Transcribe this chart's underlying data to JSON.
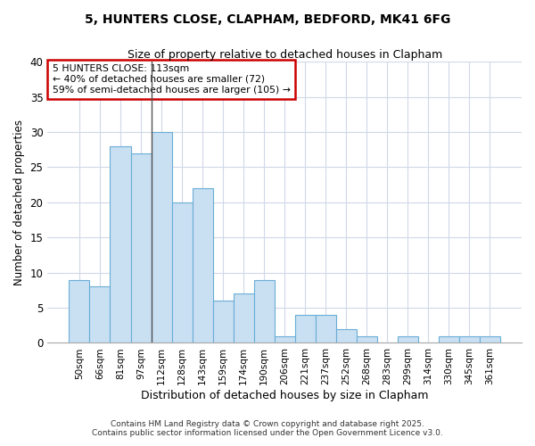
{
  "title1": "5, HUNTERS CLOSE, CLAPHAM, BEDFORD, MK41 6FG",
  "title2": "Size of property relative to detached houses in Clapham",
  "xlabel": "Distribution of detached houses by size in Clapham",
  "ylabel": "Number of detached properties",
  "categories": [
    "50sqm",
    "66sqm",
    "81sqm",
    "97sqm",
    "112sqm",
    "128sqm",
    "143sqm",
    "159sqm",
    "174sqm",
    "190sqm",
    "206sqm",
    "221sqm",
    "237sqm",
    "252sqm",
    "268sqm",
    "283sqm",
    "299sqm",
    "314sqm",
    "330sqm",
    "345sqm",
    "361sqm"
  ],
  "values": [
    9,
    8,
    28,
    27,
    30,
    20,
    22,
    6,
    7,
    9,
    1,
    4,
    4,
    2,
    1,
    0,
    1,
    0,
    1,
    1,
    1
  ],
  "bar_color": "#c9dff2",
  "bar_edge_color": "#6aaed6",
  "vline_index": 4.0,
  "vline_color": "#555555",
  "annotation_text": "5 HUNTERS CLOSE: 113sqm\n← 40% of detached houses are smaller (72)\n59% of semi-detached houses are larger (105) →",
  "annotation_box_color": "#ffffff",
  "annotation_box_edge": "#cc0000",
  "ylim": [
    0,
    40
  ],
  "yticks": [
    0,
    5,
    10,
    15,
    20,
    25,
    30,
    35,
    40
  ],
  "footer1": "Contains HM Land Registry data © Crown copyright and database right 2025.",
  "footer2": "Contains public sector information licensed under the Open Government Licence v3.0.",
  "bg_color": "#ffffff",
  "plot_bg_color": "#ffffff",
  "grid_color": "#d0d8e8"
}
